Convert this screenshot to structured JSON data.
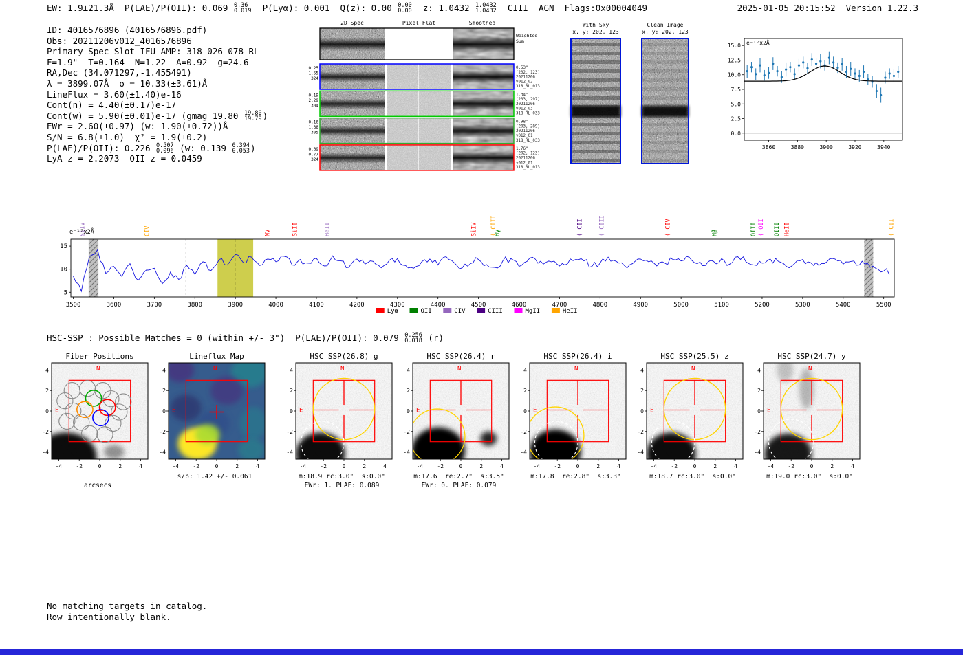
{
  "meta": {
    "timestamp": "2025-01-05 20:15:52  Version 1.22.3"
  },
  "header": {
    "segments": [
      {
        "t": "EW: 1.9±21.3Å  P(LAE)/P(OII): 0.069 "
      },
      {
        "f": [
          "0.36",
          "0.019"
        ]
      },
      {
        "t": "  P(Lyα): 0.001  Q(z): 0.00 "
      },
      {
        "f": [
          "0.00",
          "0.00"
        ]
      },
      {
        "t": "  z: 1.0432 "
      },
      {
        "f": [
          "1.0432",
          "1.0432"
        ]
      },
      {
        "t": "  CIII  AGN  Flags:0x00004049"
      }
    ]
  },
  "info": {
    "lines": [
      [
        {
          "t": "ID: 4016576896 (4016576896.pdf)"
        }
      ],
      [
        {
          "t": "Obs: 20211206v012_4016576896"
        }
      ],
      [
        {
          "t": "Primary Spec_Slot_IFU_AMP: 318_026_078_RL"
        }
      ],
      [
        {
          "t": "F=1.9\"  T=0.164  N=1.22  A=0.92  g=24.6"
        }
      ],
      [
        {
          "t": "RA,Dec (34.071297,-1.455491)"
        }
      ],
      [
        {
          "t": "λ = 3899.07Å  σ = 10.33(±3.61)Å"
        }
      ],
      [
        {
          "t": "LineFlux = 3.60(±1.40)e-16"
        }
      ],
      [
        {
          "t": "Cont(n) = 4.40(±0.17)e-17"
        }
      ],
      [
        {
          "t": "Cont(w) = 5.90(±0.01)e-17 (gmag 19.80 "
        },
        {
          "f": [
            "19.80",
            "19.79"
          ]
        },
        {
          "t": ")"
        }
      ],
      [
        {
          "t": "EWr = 2.60(±0.97) (w: 1.90(±0.72))Å"
        }
      ],
      [
        {
          "t": "S/N = 6.8(±1.0)  χ² = 1.9(±0.2)"
        }
      ],
      [
        {
          "t": "P(LAE)/P(OII): 0.226 "
        },
        {
          "f": [
            "0.507",
            "0.096"
          ]
        },
        {
          "t": " (w: 0.139 "
        },
        {
          "f": [
            "0.394",
            "0.053"
          ]
        },
        {
          "t": ")"
        }
      ],
      [
        {
          "t": "LyA z = 2.2073  OII z = 0.0459"
        }
      ]
    ]
  },
  "spec2d": {
    "col_titles": [
      "2D Spec",
      "Pixel Flat",
      "Smoothed"
    ],
    "weighted_label": [
      "Weighted",
      "Sum"
    ],
    "rows": [
      {
        "left": [
          "0.25",
          "1.55",
          "324"
        ],
        "right": [
          "0.53\"",
          "(202, 123)",
          "20211206",
          "v012_02",
          "318_RL_013"
        ],
        "color": "#0000ff"
      },
      {
        "left": [
          "0.19",
          "2.29",
          "304"
        ],
        "right": [
          "1.34\"",
          "(203, 297)",
          "20211206",
          "v012_03",
          "318_RL_033"
        ],
        "color": "#00cc00"
      },
      {
        "left": [
          "0.16",
          "1.38",
          "305"
        ],
        "right": [
          "0.98\"",
          "(203, 289)",
          "20211206",
          "v012_01",
          "318_RL_033"
        ],
        "color": "#33aa33"
      },
      {
        "left": [
          "0.09",
          "0.77",
          "324"
        ],
        "right": [
          "1.76\"",
          "(202, 123)",
          "20211206",
          "v012_01",
          "318_RL_013"
        ],
        "color": "#ff0000"
      }
    ]
  },
  "sky": {
    "with_sky": {
      "title": "With Sky",
      "subtitle": "x, y: 202, 123"
    },
    "clean": {
      "title": "Clean Image",
      "subtitle": "x, y: 202, 123"
    }
  },
  "chart_data": [
    {
      "type": "scatter",
      "name": "emission-line-fit",
      "ylabel": "e⁻¹⁷x2Å",
      "xlim": [
        3843,
        3953
      ],
      "ylim": [
        -1.2,
        16.2
      ],
      "xticks": [
        3860,
        3880,
        3900,
        3920,
        3940
      ],
      "yticks": [
        0,
        2.5,
        5,
        7.5,
        10,
        12.5,
        15
      ],
      "x": [
        3845,
        3848,
        3851,
        3854,
        3857,
        3860,
        3863,
        3866,
        3869,
        3872,
        3875,
        3878,
        3881,
        3884,
        3887,
        3890,
        3893,
        3896,
        3899,
        3902,
        3905,
        3908,
        3911,
        3914,
        3917,
        3920,
        3923,
        3926,
        3929,
        3932,
        3935,
        3938,
        3941,
        3944,
        3947,
        3950
      ],
      "y": [
        10.6,
        11.3,
        10.1,
        11.6,
        9.9,
        10.3,
        11.9,
        10.6,
        9.6,
        10.9,
        11.3,
        10.1,
        11.6,
        12.1,
        11.1,
        12.6,
        11.9,
        12.3,
        11.6,
        12.9,
        12.1,
        11.2,
        11.8,
        10.5,
        11.0,
        10.2,
        9.8,
        10.5,
        9.2,
        8.8,
        7.2,
        6.5,
        9.5,
        10.2,
        9.8,
        10.5
      ],
      "yerr": [
        1.1,
        0.9,
        1.0,
        1.2,
        0.9,
        1.0,
        1.1,
        0.9,
        1.0,
        1.2,
        0.9,
        1.0,
        1.1,
        1.0,
        0.9,
        1.1,
        1.0,
        1.2,
        0.9,
        1.1,
        1.0,
        0.9,
        1.1,
        1.0,
        1.2,
        0.9,
        1.0,
        1.1,
        0.9,
        1.0,
        1.2,
        1.3,
        1.0,
        0.9,
        1.1,
        1.0
      ],
      "fit": {
        "center": 3899.07,
        "sigma": 10.33,
        "continuum": 8.9,
        "amplitude": 2.6
      },
      "point_color": "#1f77b4",
      "fit_color": "#000000"
    },
    {
      "type": "line",
      "name": "full-spectrum",
      "ylabel": "e⁻¹⁷x2Å",
      "xlim": [
        3494,
        5526
      ],
      "ylim": [
        4,
        16.5
      ],
      "x_start": 3500,
      "dx": 20,
      "values": [
        8.5,
        5.2,
        12.8,
        14.2,
        9.1,
        10.6,
        8.4,
        11.2,
        7.6,
        9.8,
        10.2,
        6.9,
        9.4,
        7.8,
        10.8,
        8.9,
        11.6,
        9.7,
        12.1,
        10.9,
        13.2,
        11.4,
        12.6,
        10.8,
        12.2,
        11.6,
        12.8,
        10.9,
        12.1,
        11.3,
        12.4,
        10.7,
        12.9,
        11.8,
        10.4,
        12.2,
        11.1,
        11.7,
        10.3,
        11.9,
        12.3,
        10.8,
        10.2,
        11.6,
        12.2,
        10.9,
        12.7,
        11.4,
        10.3,
        11.2,
        12.1,
        11.0,
        10.4,
        11.8,
        12.3,
        10.6,
        11.7,
        12.2,
        11.1,
        11.6,
        10.7,
        11.2,
        12.1,
        11.8,
        10.6,
        11.3,
        12.6,
        11.7,
        10.8,
        11.2,
        12.2,
        11.6,
        10.7,
        11.3,
        12.1,
        11.8,
        12.6,
        11.2,
        10.8,
        11.7,
        12.3,
        11.1,
        12.7,
        11.6,
        10.9,
        11.3,
        12.2,
        11.7,
        10.6,
        11.2,
        12.1,
        11.4,
        10.8,
        11.6,
        12.2,
        11.1,
        11.7,
        10.9,
        11.3,
        10.2,
        9.6,
        9.0
      ],
      "xticks": [
        3500,
        3600,
        3700,
        3800,
        3900,
        4000,
        4100,
        4200,
        4300,
        4400,
        4500,
        4600,
        4700,
        4800,
        4900,
        5000,
        5100,
        5200,
        5300,
        5400,
        5500
      ],
      "yticks": [
        5,
        10,
        15
      ],
      "line_color": "#1515e0",
      "highlight_band": {
        "range": [
          3856,
          3944
        ],
        "color": "#c9c93a"
      },
      "detect_line": 3899.07,
      "gray_dashed_line": 3778,
      "hatch_bands": [
        [
          3538,
          3562
        ],
        [
          5452,
          5474
        ]
      ],
      "line_labels": [
        {
          "t": "SiIV",
          "wl": 3524,
          "c": "#9467bd"
        },
        {
          "t": "CIV",
          "wl": 3683,
          "c": "#ffa500"
        },
        {
          "t": "NV",
          "wl": 3980,
          "c": "#ff0000"
        },
        {
          "t": "SiII",
          "wl": 4048,
          "c": "#ff0000"
        },
        {
          "t": "HeII",
          "wl": 4128,
          "c": "#9467bd"
        },
        {
          "t": "SiIV",
          "wl": 4490,
          "c": "#ff0000"
        },
        {
          "t": "CIII",
          "wl": 4538,
          "c": "#ffa500",
          "b": true
        },
        {
          "t": "Hγ",
          "wl": 4547,
          "c": "#008000"
        },
        {
          "t": "CII",
          "wl": 4751,
          "c": "#4b0082",
          "b": true
        },
        {
          "t": "CIII",
          "wl": 4805,
          "c": "#9467bd",
          "b": true
        },
        {
          "t": "CIV",
          "wl": 4968,
          "c": "#ff0000",
          "b": true
        },
        {
          "t": "Hβ",
          "wl": 5084,
          "c": "#008000"
        },
        {
          "t": "OIII",
          "wl": 5180,
          "c": "#008000"
        },
        {
          "t": "OII",
          "wl": 5198,
          "c": "#ff00ff",
          "b": true
        },
        {
          "t": "OIII",
          "wl": 5237,
          "c": "#008000"
        },
        {
          "t": "HeII",
          "wl": 5262,
          "c": "#ff0000"
        },
        {
          "t": "CII",
          "wl": 5520,
          "c": "#ffa500",
          "b": true
        }
      ],
      "legend": [
        {
          "label": "Lyα",
          "color": "#ff0000"
        },
        {
          "label": "OII",
          "color": "#008000"
        },
        {
          "label": "CIV",
          "color": "#9467bd"
        },
        {
          "label": "CIII",
          "color": "#4b0082"
        },
        {
          "label": "MgII",
          "color": "#ff00ff"
        },
        {
          "label": "HeII",
          "color": "#ffa500"
        }
      ]
    }
  ],
  "hsc": {
    "header": [
      {
        "t": "HSC-SSP : Possible Matches = 0 (within +/- 3\")  P(LAE)/P(OII): 0.079 "
      },
      {
        "f": [
          "0.256",
          "0.018"
        ]
      },
      {
        "t": " (r)"
      }
    ]
  },
  "cutouts": {
    "axis_ticks": [
      -4,
      -2,
      0,
      2,
      4
    ],
    "compass": {
      "n": "N",
      "e": "E"
    },
    "panels": [
      {
        "kind": "fiber",
        "title": "Fiber Positions",
        "xlabel": "arcsecs",
        "blobs": [
          [
            -3.3,
            -4.5,
            3.0,
            2.4,
            0.95
          ],
          [
            1.4,
            -4.0,
            1.0,
            0.7,
            0.4
          ]
        ],
        "fibers": {
          "radius": 0.78,
          "gray": [
            [
              -2.7,
              2.0
            ],
            [
              -1.2,
              2.2
            ],
            [
              0.3,
              2.0
            ],
            [
              -3.4,
              1.0
            ],
            [
              1.1,
              1.2
            ],
            [
              2.3,
              0.9
            ],
            [
              -2.6,
              0.0
            ],
            [
              1.9,
              -0.1
            ],
            [
              -3.2,
              -1.0
            ],
            [
              -1.8,
              -1.1
            ],
            [
              1.3,
              -1.2
            ],
            [
              -1.0,
              -2.2
            ],
            [
              0.5,
              -2.3
            ]
          ],
          "colored": [
            {
              "p": [
                -0.6,
                1.25
              ],
              "c": "#00aa00"
            },
            {
              "p": [
                -1.45,
                0.15
              ],
              "c": "#ff8c00"
            },
            {
              "p": [
                0.75,
                0.35
              ],
              "c": "#ff0000"
            },
            {
              "p": [
                0.1,
                -0.65
              ],
              "c": "#0000ff"
            }
          ]
        }
      },
      {
        "kind": "map",
        "title": "Lineflux Map",
        "caption1": "s/b: 1.42 +/- 0.061"
      },
      {
        "kind": "img",
        "title": "HSC SSP(26.8) g",
        "caption1": "m:18.9 rc:3.0\"  s:0.0\"",
        "caption2": "EWr: 1. PLAE: 0.089",
        "yellow": [
          0,
          0.2,
          3.0
        ],
        "dashed": [
          -2.1,
          -3.1,
          2.1
        ],
        "blobs": [
          [
            -2.3,
            -4.2,
            2.4,
            2.1,
            0.95
          ]
        ]
      },
      {
        "kind": "img",
        "title": "HSC SSP(26.4) r",
        "caption1": "m:17.6  re:2.7\"  s:3.5\"",
        "caption2": "EWr: 0. PLAE: 0.079",
        "yellow": [
          -2.3,
          -2.5,
          2.7
        ],
        "blobs": [
          [
            -2.2,
            -3.9,
            2.6,
            2.3,
            1
          ],
          [
            2.7,
            -2.7,
            0.8,
            0.7,
            0.85
          ]
        ]
      },
      {
        "kind": "img",
        "title": "HSC SSP(26.4) i",
        "caption1": "m:17.8  re:2.8\"  s:3.3\"",
        "yellow": [
          -2.2,
          -2.4,
          2.8
        ],
        "dashed": [
          -2.1,
          -3.1,
          2.1
        ],
        "blobs": [
          [
            -2.2,
            -4.0,
            2.5,
            2.2,
            1
          ]
        ]
      },
      {
        "kind": "img",
        "title": "HSC SSP(25.5) z",
        "caption1": "m:18.7 rc:3.0\"  s:0.0\"",
        "yellow": [
          0,
          0.2,
          3.0
        ],
        "dashed": [
          -2.1,
          -3.1,
          2.1
        ],
        "blobs": [
          [
            -2.3,
            -4.2,
            2.4,
            2.1,
            0.95
          ]
        ]
      },
      {
        "kind": "img",
        "title": "HSC SSP(24.7) y",
        "caption1": "m:19.0 rc:3.0\"  s:0.0\"",
        "yellow": [
          0,
          0.2,
          3.0
        ],
        "dashed": [
          -2.0,
          -3.0,
          2.2
        ],
        "blobs": [
          [
            -2.3,
            -4.2,
            2.3,
            2.0,
            0.9
          ],
          [
            -0.5,
            2.2,
            0.7,
            2.0,
            0.25
          ],
          [
            -2.6,
            4.0,
            0.8,
            1.2,
            0.2
          ]
        ]
      }
    ]
  },
  "footer": {
    "lines": [
      "No matching targets in catalog.",
      "Row intentionally blank."
    ]
  },
  "colors": {
    "bottom_bar": "#2626d8",
    "compass": "#ff0000",
    "square": "#ff0000",
    "crosshair": "#ff0000",
    "yellow_circle": "#ffd400",
    "dashed_circle": "#ffffff",
    "sky_border": "#0016d9"
  }
}
